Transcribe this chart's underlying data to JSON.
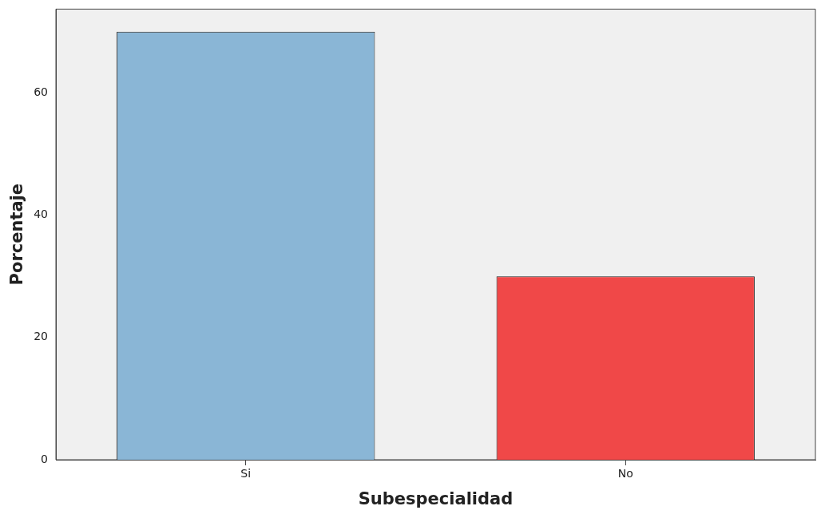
{
  "chart_data": {
    "type": "bar",
    "xlabel": "Subespecialidad",
    "ylabel": "Porcentaje",
    "categories": [
      "Si",
      "No"
    ],
    "values": [
      70,
      30
    ],
    "colors": [
      "#8ab6d6",
      "#f04848"
    ],
    "ylim": [
      0,
      73.7
    ],
    "yticks": [
      0,
      20,
      40,
      60
    ],
    "grid": false,
    "legend": false
  }
}
